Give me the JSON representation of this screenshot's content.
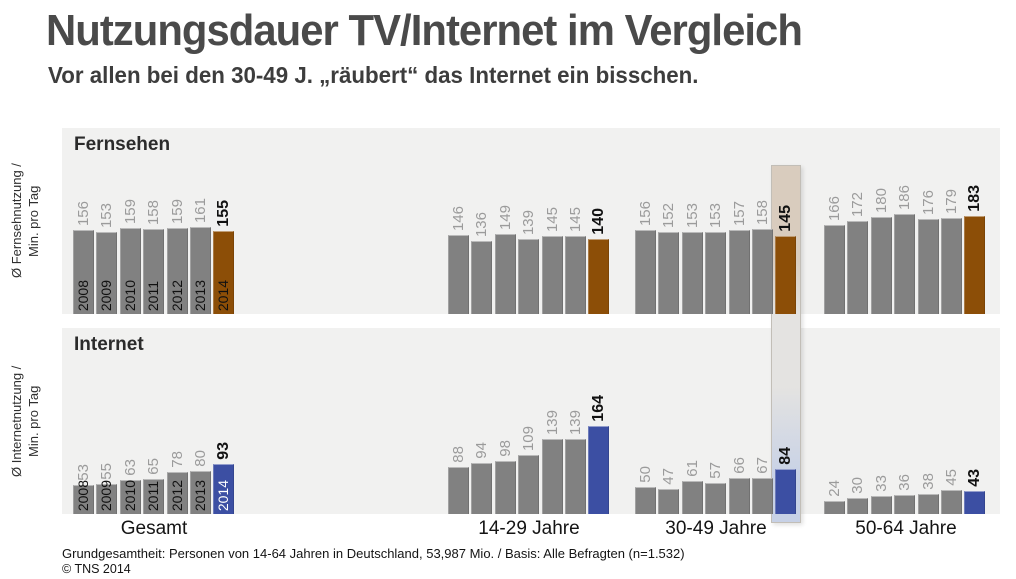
{
  "title": "Nutzungsdauer TV/Internet im Vergleich",
  "subtitle": "Vor allen bei den 30-49 J. „räubert“ das Internet ein bisschen.",
  "footer": {
    "basis": "Grundgesamtheit: Personen von 14-64 Jahren in Deutschland, 53,987 Mio. / Basis: Alle Befragten (n=1.532)",
    "copyright": "© TNS 2014"
  },
  "colors": {
    "bar_default": "#818181",
    "bar_tv_highlight": "#8c4e07",
    "bar_internet_highlight": "#3c4fa3",
    "panel_bg": "#f1f1f0",
    "value_label": "#9b9b9b",
    "value_label_final": "#111111",
    "band_top": "#d9ccbe",
    "band_mid": "#e4e3e1",
    "band_bottom": "#c7d1e6"
  },
  "annotation": {
    "highlight_group": "30-49 Jahre",
    "highlight_year": "2014"
  },
  "chart_data": [
    {
      "type": "bar",
      "panel": "Fernsehen",
      "ylabel": "Ø Fernsehnutzung /\nMin. pro Tag",
      "years": [
        "2008",
        "2009",
        "2010",
        "2011",
        "2012",
        "2013",
        "2014"
      ],
      "highlight_color": "#8c4e07",
      "highlight_year_label_color": "#111111",
      "ylim": [
        0,
        200
      ],
      "groups": [
        {
          "label": "Gesamt",
          "values": [
            156,
            153,
            159,
            158,
            159,
            161,
            155
          ]
        },
        {
          "label": "14-29 Jahre",
          "values": [
            146,
            136,
            149,
            139,
            145,
            145,
            140
          ]
        },
        {
          "label": "30-49 Jahre",
          "values": [
            156,
            152,
            153,
            153,
            157,
            158,
            145
          ],
          "highlight_band": true
        },
        {
          "label": "50-64 Jahre",
          "values": [
            166,
            172,
            180,
            186,
            176,
            179,
            183
          ]
        }
      ]
    },
    {
      "type": "bar",
      "panel": "Internet",
      "ylabel": "Ø Internetnutzung /\nMin. pro Tag",
      "years": [
        "2008",
        "2009",
        "2010",
        "2011",
        "2012",
        "2013",
        "2014"
      ],
      "highlight_color": "#3c4fa3",
      "highlight_year_label_color": "#ffffff",
      "ylim": [
        0,
        200
      ],
      "groups": [
        {
          "label": "Gesamt",
          "values": [
            53,
            55,
            63,
            65,
            78,
            80,
            93
          ]
        },
        {
          "label": "14-29 Jahre",
          "values": [
            88,
            94,
            98,
            109,
            139,
            139,
            164
          ]
        },
        {
          "label": "30-49 Jahre",
          "values": [
            50,
            47,
            61,
            57,
            66,
            67,
            84
          ],
          "highlight_band": true
        },
        {
          "label": "50-64 Jahre",
          "values": [
            24,
            30,
            33,
            36,
            38,
            45,
            43
          ]
        }
      ]
    }
  ]
}
